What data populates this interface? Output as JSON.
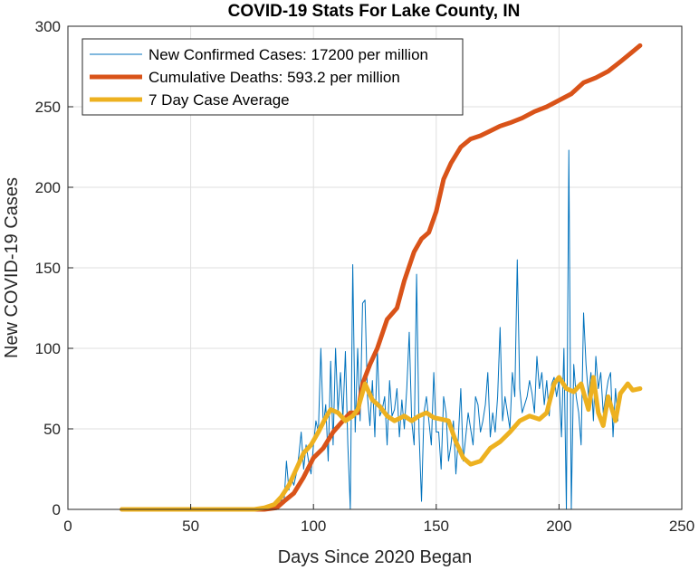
{
  "chart_data": {
    "type": "line",
    "title": "COVID-19 Stats For Lake County, IN",
    "xlabel": "Days Since 2020 Began",
    "ylabel": "New COVID-19 Cases",
    "xlim": [
      0,
      250
    ],
    "ylim": [
      0,
      300
    ],
    "xticks": [
      "0",
      "50",
      "100",
      "150",
      "200",
      "250"
    ],
    "yticks": [
      "0",
      "50",
      "100",
      "150",
      "200",
      "250",
      "300"
    ],
    "grid": true,
    "legend_position": "top-left",
    "series": [
      {
        "name": "New Confirmed Cases: 17200 per million",
        "color": "#0072BD",
        "style": "thin",
        "x_start": 22,
        "values": [
          0,
          0,
          0,
          0,
          0,
          0,
          0,
          0,
          0,
          0,
          0,
          0,
          0,
          0,
          0,
          0,
          0,
          0,
          0,
          0,
          0,
          0,
          0,
          0,
          0,
          0,
          0,
          0,
          0,
          0,
          0,
          0,
          0,
          0,
          0,
          0,
          0,
          0,
          0,
          0,
          0,
          0,
          0,
          0,
          0,
          0,
          0,
          0,
          0,
          0,
          0,
          0,
          0,
          1,
          0,
          0,
          1,
          0,
          0,
          2,
          1,
          2,
          3,
          5,
          2,
          6,
          4,
          30,
          12,
          20,
          15,
          22,
          33,
          48,
          25,
          40,
          30,
          22,
          40,
          55,
          48,
          100,
          52,
          65,
          30,
          92,
          40,
          100,
          60,
          85,
          57,
          98,
          40,
          0,
          152,
          48,
          100,
          55,
          128,
          130,
          70,
          52,
          80,
          45,
          100,
          58,
          62,
          70,
          40,
          80,
          58,
          62,
          75,
          45,
          68,
          50,
          75,
          110,
          55,
          40,
          146,
          48,
          5,
          60,
          70,
          55,
          40,
          85,
          48,
          48,
          25,
          70,
          60,
          30,
          40,
          55,
          22,
          45,
          75,
          30,
          45,
          60,
          50,
          40,
          70,
          65,
          48,
          55,
          65,
          85,
          45,
          60,
          48,
          70,
          113,
          55,
          70,
          60,
          50,
          85,
          70,
          155,
          75,
          60,
          65,
          70,
          80,
          72,
          60,
          95,
          75,
          85,
          65,
          80,
          58,
          78,
          82,
          70,
          80,
          45,
          100,
          0,
          223,
          0,
          90,
          70,
          60,
          40,
          122,
          90,
          70,
          85,
          55,
          95,
          75,
          85,
          60,
          70,
          80,
          85,
          45,
          75,
          55
        ],
        "note_units": "x = day number, consecutive integers from x_start"
      },
      {
        "name": "Cumulative Deaths: 593.2 per million",
        "color": "#D95319",
        "style": "thick",
        "points": [
          [
            22,
            0
          ],
          [
            80,
            0
          ],
          [
            85,
            1
          ],
          [
            88,
            5
          ],
          [
            92,
            10
          ],
          [
            96,
            20
          ],
          [
            100,
            32
          ],
          [
            104,
            38
          ],
          [
            108,
            48
          ],
          [
            112,
            55
          ],
          [
            115,
            60
          ],
          [
            118,
            60
          ],
          [
            120,
            78
          ],
          [
            123,
            90
          ],
          [
            126,
            100
          ],
          [
            130,
            118
          ],
          [
            134,
            125
          ],
          [
            137,
            142
          ],
          [
            141,
            160
          ],
          [
            144,
            168
          ],
          [
            147,
            172
          ],
          [
            150,
            185
          ],
          [
            153,
            205
          ],
          [
            156,
            215
          ],
          [
            160,
            225
          ],
          [
            164,
            230
          ],
          [
            168,
            232
          ],
          [
            172,
            235
          ],
          [
            176,
            238
          ],
          [
            180,
            240
          ],
          [
            185,
            243
          ],
          [
            190,
            247
          ],
          [
            195,
            250
          ],
          [
            200,
            254
          ],
          [
            205,
            258
          ],
          [
            210,
            265
          ],
          [
            215,
            268
          ],
          [
            220,
            272
          ],
          [
            225,
            278
          ],
          [
            229,
            283
          ],
          [
            233,
            288
          ]
        ]
      },
      {
        "name": "7 Day Case Average",
        "color": "#EDB120",
        "style": "thick",
        "points": [
          [
            22,
            0
          ],
          [
            76,
            0
          ],
          [
            80,
            1
          ],
          [
            84,
            3
          ],
          [
            87,
            8
          ],
          [
            90,
            15
          ],
          [
            93,
            25
          ],
          [
            96,
            35
          ],
          [
            99,
            40
          ],
          [
            102,
            48
          ],
          [
            105,
            57
          ],
          [
            107,
            62
          ],
          [
            110,
            60
          ],
          [
            113,
            55
          ],
          [
            116,
            58
          ],
          [
            118,
            62
          ],
          [
            121,
            78
          ],
          [
            124,
            68
          ],
          [
            127,
            64
          ],
          [
            130,
            58
          ],
          [
            133,
            55
          ],
          [
            137,
            58
          ],
          [
            140,
            55
          ],
          [
            143,
            58
          ],
          [
            146,
            60
          ],
          [
            149,
            57
          ],
          [
            152,
            56
          ],
          [
            155,
            55
          ],
          [
            158,
            42
          ],
          [
            161,
            32
          ],
          [
            164,
            28
          ],
          [
            168,
            30
          ],
          [
            172,
            38
          ],
          [
            176,
            42
          ],
          [
            180,
            48
          ],
          [
            184,
            55
          ],
          [
            188,
            58
          ],
          [
            192,
            56
          ],
          [
            195,
            60
          ],
          [
            198,
            78
          ],
          [
            200,
            82
          ],
          [
            203,
            75
          ],
          [
            206,
            73
          ],
          [
            209,
            78
          ],
          [
            212,
            62
          ],
          [
            214,
            82
          ],
          [
            216,
            60
          ],
          [
            218,
            52
          ],
          [
            220,
            70
          ],
          [
            223,
            55
          ],
          [
            225,
            72
          ],
          [
            228,
            78
          ],
          [
            230,
            74
          ],
          [
            233,
            75
          ]
        ]
      }
    ]
  }
}
